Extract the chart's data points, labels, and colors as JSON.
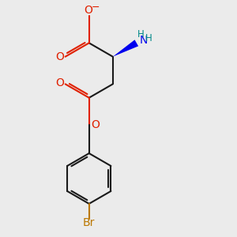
{
  "bg_color": "#ebebeb",
  "bond_color": "#1a1a1a",
  "oxygen_color": "#e02000",
  "nitrogen_color": "#0000ee",
  "nitrogen_h_color": "#008888",
  "bromine_color": "#bb7700",
  "bond_lw": 1.5,
  "figsize": [
    3.0,
    3.0
  ],
  "dpi": 100,
  "xlim": [
    0.1,
    0.95
  ],
  "ylim": [
    0.0,
    1.0
  ]
}
